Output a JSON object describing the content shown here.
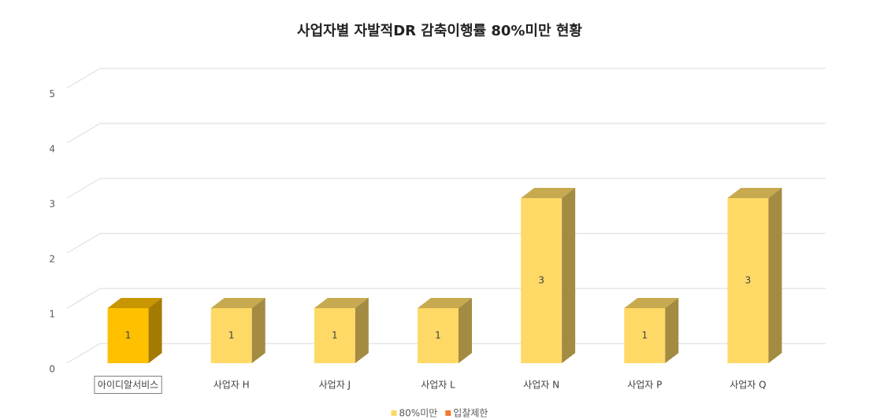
{
  "chart_data": {
    "type": "bar3d",
    "title": "사업자별 자발적DR 감축이행률 80%미만 현황",
    "categories": [
      "아이디알서비스",
      "사업자 H",
      "사업자 J",
      "사업자 L",
      "사업자 N",
      "사업자 P",
      "사업자 Q"
    ],
    "series": [
      {
        "name": "80%미만",
        "color": "#ffd966",
        "point_colors": [
          "#ffc000",
          "#ffd966",
          "#ffd966",
          "#ffd966",
          "#ffd966",
          "#ffd966",
          "#ffd966"
        ],
        "values": [
          1,
          1,
          1,
          1,
          3,
          1,
          3
        ]
      },
      {
        "name": "입찰제한",
        "color": "#ed7d31",
        "values": [
          null,
          null,
          null,
          null,
          null,
          null,
          null
        ]
      }
    ],
    "ylim": [
      0,
      5
    ],
    "yticks": [
      0,
      1,
      2,
      3,
      4,
      5
    ],
    "grid": true,
    "legend": "bottom"
  }
}
